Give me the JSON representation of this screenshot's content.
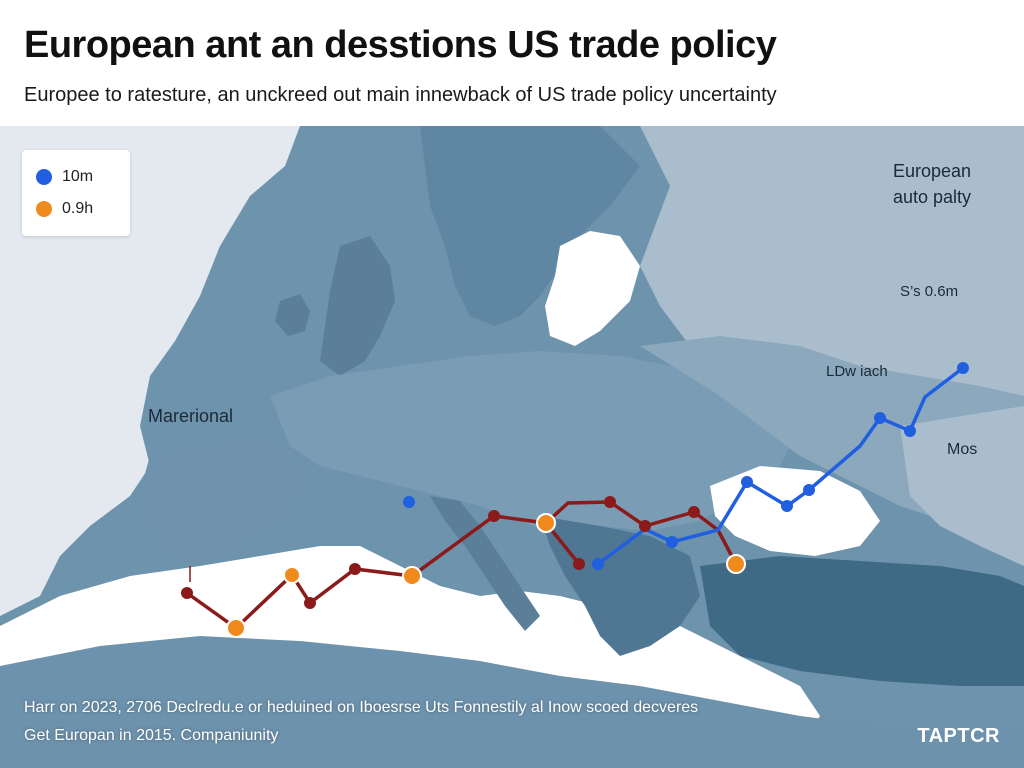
{
  "title": "European ant an desstions US trade policy",
  "subtitle": "Europee to ratesture, an unckreed out main innewback of  US trade policy uncertainty",
  "legend": [
    {
      "label": "10m",
      "color": "#1f5fe0"
    },
    {
      "label": "0.9h",
      "color": "#f08a1c"
    }
  ],
  "map_labels": {
    "marerional": "Marerional",
    "european_line1": "European",
    "european_line2": "auto palty",
    "value_label": "S’s 0.6m",
    "ldw_label": "LDw iach",
    "mos": "Mos"
  },
  "footnote": {
    "line1": "Harr on 2023, 2706 Declredu.e or heduined on Iboesrse Uts Fonnestily al Inow scoed decveres",
    "line2": "Get Europan in 2015. Companiunity"
  },
  "brand": "TAPTCR",
  "colors": {
    "sea": "#5d84a1",
    "land": "#dfe6ec",
    "route_red": "#8b1a1a",
    "route_blue": "#1f5fe0",
    "marker_orange": "#f08a1c"
  },
  "icons": {
    "legend_blue": "filled-circle-icon",
    "legend_orange": "filled-circle-icon"
  }
}
